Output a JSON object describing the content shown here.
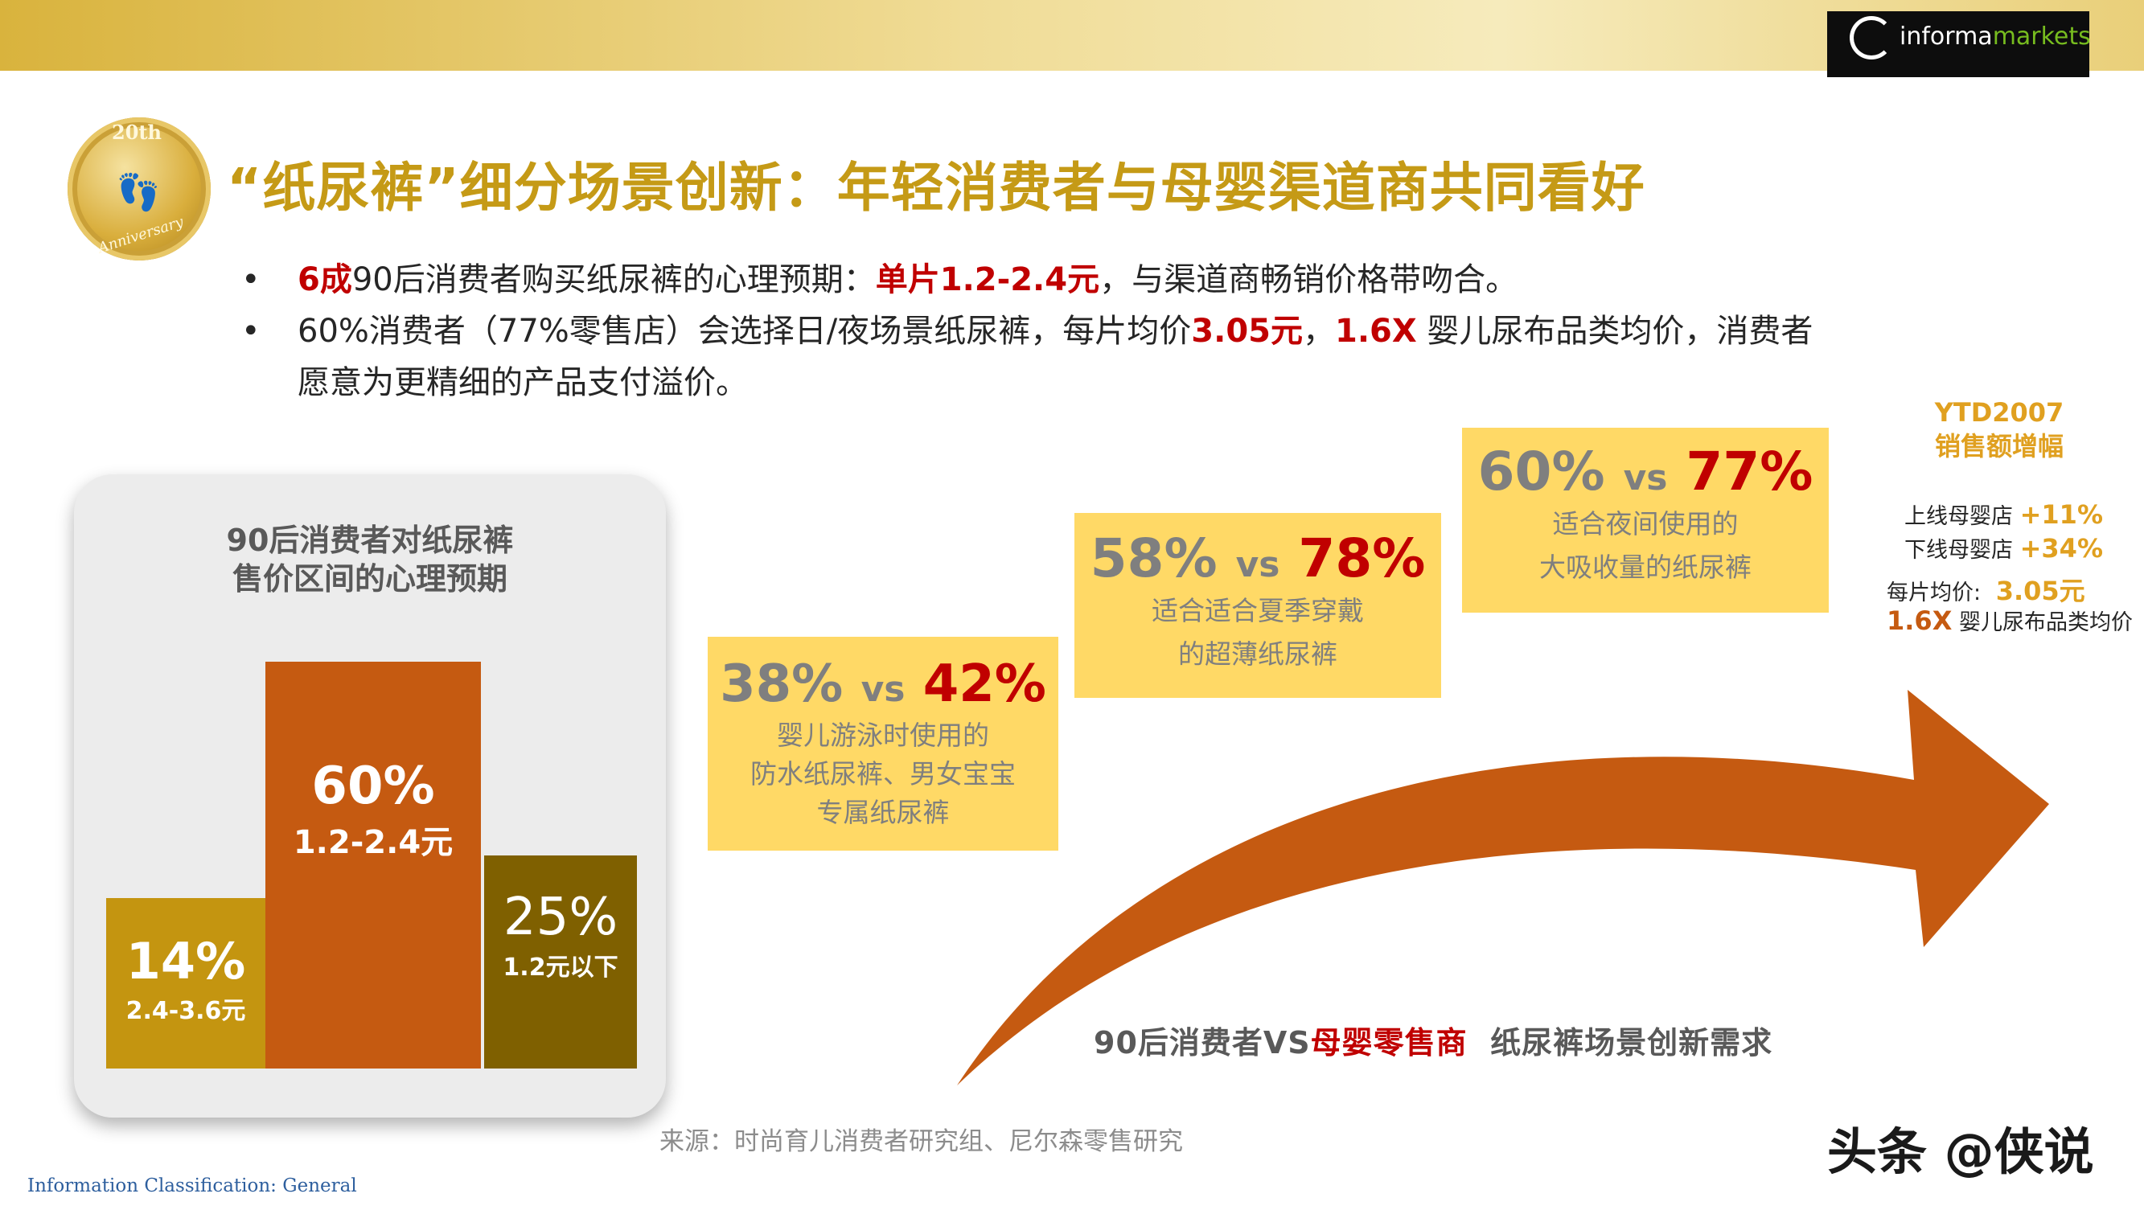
{
  "brand": {
    "logo_text_main": "informa",
    "logo_text_accent": "markets",
    "badge_top": "20th",
    "badge_bottom": "Anniversary",
    "colors": {
      "title_gold": "#c59a16",
      "red": "#c00000",
      "orange": "#c55a11",
      "olive": "#7f6000",
      "mustard": "#c49510",
      "box_yellow": "#ffd966"
    }
  },
  "title": "“纸尿裤”细分场景创新：年轻消费者与母婴渠道商共同看好",
  "bullets": [
    {
      "dot": "•",
      "r1": "6成",
      "t1": "90后消费者购买纸尿裤的心理预期：",
      "r2": "单片1.2-2.4元",
      "t2": "，与渠道商畅销价格带吻合。"
    },
    {
      "dot": "•",
      "t1": "60%消费者（77%零售店）会选择日/夜场景纸尿裤，每片均价",
      "r1": "3.05元",
      "t2": "，",
      "r2": "1.6X",
      "t3": " 婴儿尿布品类均价，消费者",
      "t4": "愿意为更精细的产品支付溢价。"
    }
  ],
  "panel": {
    "title_line1": "90后消费者对纸尿裤",
    "title_line2": "售价区间的心理预期",
    "bars": [
      {
        "pct": "14%",
        "range": "2.4-3.6元",
        "share": 14
      },
      {
        "pct": "60%",
        "range": "1.2-2.4元",
        "share": 60
      },
      {
        "pct": "25%",
        "range": "1.2元以下",
        "share": 25
      }
    ]
  },
  "scenarios": [
    {
      "a": "38%",
      "vs": "vs",
      "b": "42%",
      "desc": [
        "婴儿游泳时使用的",
        "防水纸尿裤、男女宝宝",
        "专属纸尿裤"
      ]
    },
    {
      "a": "58%",
      "vs": "vs",
      "b": "78%",
      "desc": [
        "适合适合夏季穿戴",
        "的超薄纸尿裤"
      ]
    },
    {
      "a": "60%",
      "vs": "vs",
      "b": "77%",
      "desc": [
        "适合夜间使用的",
        "大吸收量的纸尿裤"
      ]
    }
  ],
  "ytd": {
    "head1": "YTD2007",
    "head2": "销售额增幅",
    "online_label": "上线母婴店",
    "online_value": "+11%",
    "offline_label": "下线母婴店",
    "offline_value": "+34%",
    "price_label": "每片均价:",
    "price_value": "3.05元",
    "multiple_value": "1.6X",
    "multiple_label": "婴儿尿布品类均价"
  },
  "caption": {
    "part1": "90后消费者VS",
    "part2": "母婴零售商",
    "part3": "  纸尿裤场景创新需求"
  },
  "source": "来源：时尚育儿消费者研究组、尼尔森零售研究",
  "classification": "Information Classification: General",
  "watermark": "头条 @侠说"
}
